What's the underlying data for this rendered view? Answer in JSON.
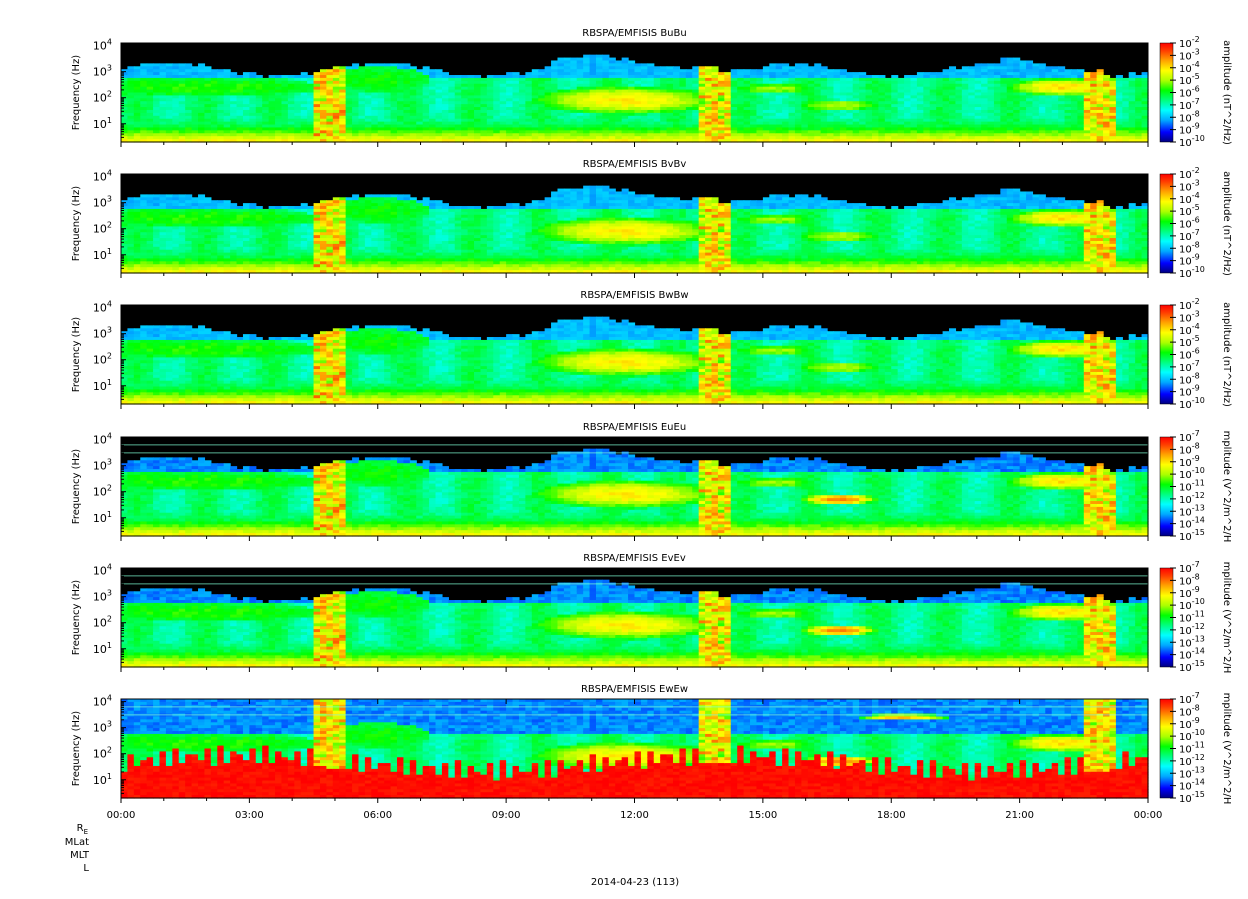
{
  "figure": {
    "date_label": "2014-04-23 (113)",
    "ephemeris_labels": [
      "R",
      "MLat",
      "MLT",
      "L"
    ],
    "ephemeris_subscript": "E"
  },
  "colors": {
    "palette": [
      "#000080",
      "#0000ff",
      "#00aaff",
      "#00ffff",
      "#00ff80",
      "#00ff00",
      "#aaff00",
      "#ffff00",
      "#ffa500",
      "#ff4000",
      "#ff0000"
    ],
    "background_fill": "#000000"
  },
  "chart_data": [
    {
      "type": "heatmap",
      "title": "RBSPA/EMFISIS  BuBu",
      "ylabel": "Frequency (Hz)",
      "yscale": "log",
      "yticks": [
        "10",
        "10",
        "10",
        "10"
      ],
      "ytick_exponents": [
        "1",
        "2",
        "3",
        "4"
      ],
      "colorbar_label": "amplitude (nT^2/Hz)",
      "colorbar_ticks": [
        "-2",
        "-3",
        "-4",
        "-5",
        "-6",
        "-7",
        "-8",
        "-9",
        "-10"
      ],
      "colorbar_range": [
        -10,
        -2
      ],
      "x_ticks": [
        "00:00",
        "03:00",
        "06:00",
        "09:00",
        "12:00",
        "15:00",
        "18:00",
        "21:00",
        "00:00"
      ],
      "xlim_hours": [
        0,
        24
      ],
      "ylim_log10_hz": [
        0.3,
        4.1
      ],
      "noise_floor_log10": -8
    },
    {
      "type": "heatmap",
      "title": "RBSPA/EMFISIS  BvBv",
      "ylabel": "Frequency (Hz)",
      "yscale": "log",
      "yticks": [
        "10",
        "10",
        "10",
        "10"
      ],
      "ytick_exponents": [
        "1",
        "2",
        "3",
        "4"
      ],
      "colorbar_label": "amplitude (nT^2/Hz)",
      "colorbar_ticks": [
        "-2",
        "-3",
        "-4",
        "-5",
        "-6",
        "-7",
        "-8",
        "-9",
        "-10"
      ],
      "colorbar_range": [
        -10,
        -2
      ],
      "x_ticks": [
        "00:00",
        "03:00",
        "06:00",
        "09:00",
        "12:00",
        "15:00",
        "18:00",
        "21:00",
        "00:00"
      ],
      "xlim_hours": [
        0,
        24
      ],
      "ylim_log10_hz": [
        0.3,
        4.1
      ],
      "noise_floor_log10": -8
    },
    {
      "type": "heatmap",
      "title": "RBSPA/EMFISIS  BwBw",
      "ylabel": "Frequency (Hz)",
      "yscale": "log",
      "yticks": [
        "10",
        "10",
        "10",
        "10"
      ],
      "ytick_exponents": [
        "1",
        "2",
        "3",
        "4"
      ],
      "colorbar_label": "amplitude (nT^2/Hz)",
      "colorbar_ticks": [
        "-2",
        "-3",
        "-4",
        "-5",
        "-6",
        "-7",
        "-8",
        "-9",
        "-10"
      ],
      "colorbar_range": [
        -10,
        -2
      ],
      "x_ticks": [
        "00:00",
        "03:00",
        "06:00",
        "09:00",
        "12:00",
        "15:00",
        "18:00",
        "21:00",
        "00:00"
      ],
      "xlim_hours": [
        0,
        24
      ],
      "ylim_log10_hz": [
        0.3,
        4.1
      ],
      "noise_floor_log10": -8
    },
    {
      "type": "heatmap",
      "title": "RBSPA/EMFISIS  EuEu",
      "ylabel": "Frequency (Hz)",
      "yscale": "log",
      "yticks": [
        "10",
        "10",
        "10",
        "10"
      ],
      "ytick_exponents": [
        "1",
        "2",
        "3",
        "4"
      ],
      "colorbar_label": "mplitude (V^2/m^2/H",
      "colorbar_ticks": [
        "-7",
        "-8",
        "-9",
        "-10",
        "-11",
        "-12",
        "-13",
        "-14",
        "-15"
      ],
      "colorbar_range": [
        -15,
        -7
      ],
      "x_ticks": [
        "00:00",
        "03:00",
        "06:00",
        "09:00",
        "12:00",
        "15:00",
        "18:00",
        "21:00",
        "00:00"
      ],
      "xlim_hours": [
        0,
        24
      ],
      "ylim_log10_hz": [
        0.3,
        4.1
      ],
      "noise_floor_log10": -13.5
    },
    {
      "type": "heatmap",
      "title": "RBSPA/EMFISIS  EvEv",
      "ylabel": "Frequency (Hz)",
      "yscale": "log",
      "yticks": [
        "10",
        "10",
        "10",
        "10"
      ],
      "ytick_exponents": [
        "1",
        "2",
        "3",
        "4"
      ],
      "colorbar_label": "mplitude (V^2/m^2/H",
      "colorbar_ticks": [
        "-7",
        "-8",
        "-9",
        "-10",
        "-11",
        "-12",
        "-13",
        "-14",
        "-15"
      ],
      "colorbar_range": [
        -15,
        -7
      ],
      "x_ticks": [
        "00:00",
        "03:00",
        "06:00",
        "09:00",
        "12:00",
        "15:00",
        "18:00",
        "21:00",
        "00:00"
      ],
      "xlim_hours": [
        0,
        24
      ],
      "ylim_log10_hz": [
        0.3,
        4.1
      ],
      "noise_floor_log10": -13.5
    },
    {
      "type": "heatmap",
      "title": "RBSPA/EMFISIS  EwEw",
      "ylabel": "Frequency (Hz)",
      "yscale": "log",
      "yticks": [
        "10",
        "10",
        "10",
        "10"
      ],
      "ytick_exponents": [
        "1",
        "2",
        "3",
        "4"
      ],
      "colorbar_label": "mplitude (V^2/m^2/H",
      "colorbar_ticks": [
        "-7",
        "-8",
        "-9",
        "-10",
        "-11",
        "-12",
        "-13",
        "-14",
        "-15"
      ],
      "colorbar_range": [
        -15,
        -7
      ],
      "x_ticks": [
        "00:00",
        "03:00",
        "06:00",
        "09:00",
        "12:00",
        "15:00",
        "18:00",
        "21:00",
        "00:00"
      ],
      "xlim_hours": [
        0,
        24
      ],
      "ylim_log10_hz": [
        0.3,
        4.1
      ],
      "noise_floor_log10": -12
    }
  ]
}
